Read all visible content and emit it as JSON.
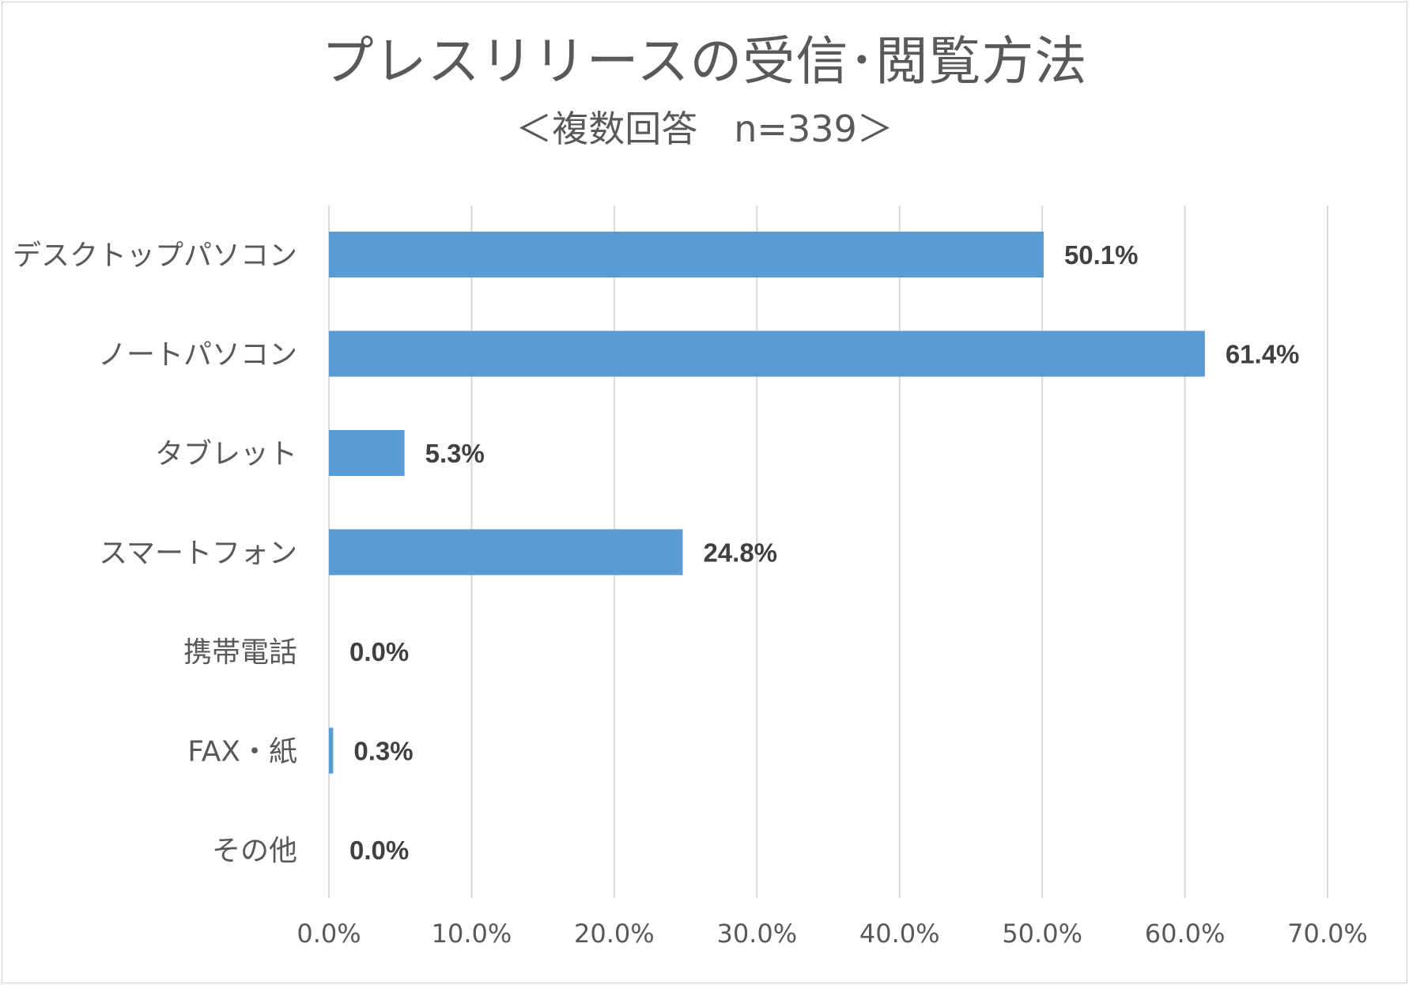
{
  "chart_data": {
    "type": "bar",
    "orientation": "horizontal",
    "title": "プレスリリースの受信･閲覧方法",
    "subtitle": "＜複数回答　n=339＞",
    "categories": [
      "デスクトップパソコン",
      "ノートパソコン",
      "タブレット",
      "スマートフォン",
      "携帯電話",
      "FAX・紙",
      "その他"
    ],
    "values": [
      50.1,
      61.4,
      5.3,
      24.8,
      0.0,
      0.3,
      0.0
    ],
    "value_labels": [
      "50.1%",
      "61.4%",
      "5.3%",
      "24.8%",
      "0.0%",
      "0.3%",
      "0.0%"
    ],
    "xlim": [
      0,
      70
    ],
    "xticks": [
      0,
      10,
      20,
      30,
      40,
      50,
      60,
      70
    ],
    "xtick_labels": [
      "0.0%",
      "10.0%",
      "20.0%",
      "30.0%",
      "40.0%",
      "50.0%",
      "60.0%",
      "70.0%"
    ],
    "grid": true,
    "xlabel": "",
    "ylabel": "",
    "colors": {
      "bar": "#5b9bd5",
      "grid": "#d9d9d9",
      "text": "#595959",
      "data_label": "#404040"
    }
  }
}
